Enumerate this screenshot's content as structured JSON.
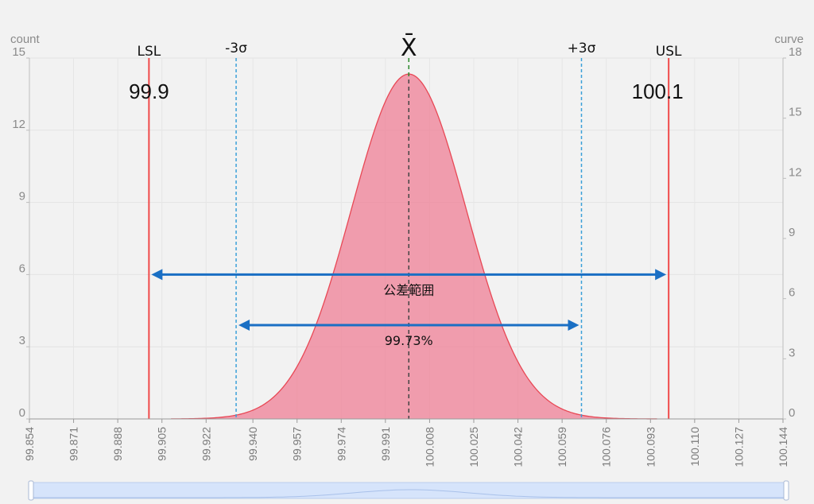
{
  "chart_data": {
    "type": "area",
    "y_left": {
      "title": "count",
      "ticks": [
        0,
        3,
        6,
        9,
        12,
        15
      ],
      "range": [
        0,
        15
      ]
    },
    "y_right": {
      "title": "curve",
      "ticks": [
        0,
        3,
        6,
        9,
        12,
        15,
        18
      ],
      "range": [
        0,
        18
      ]
    },
    "x": {
      "ticks": [
        "99.854",
        "99.871",
        "99.888",
        "99.905",
        "99.922",
        "99.940",
        "99.957",
        "99.974",
        "99.991",
        "100.008",
        "100.025",
        "100.042",
        "100.059",
        "100.076",
        "100.093",
        "100.110",
        "100.127",
        "100.144"
      ],
      "range": [
        99.854,
        100.144
      ]
    },
    "curve": {
      "mean": 100.0,
      "sigma": 0.02215,
      "peak": 17.2,
      "x_start": 99.9085,
      "x_end": 100.0955,
      "color": "#ef7f95",
      "line_color": "#e84855"
    },
    "markers": {
      "lsl": {
        "label": "LSL",
        "x": 99.9,
        "value_label": "99.9",
        "color": "#f04a4a"
      },
      "usl": {
        "label": "USL",
        "x": 100.1,
        "value_label": "100.1",
        "color": "#f04a4a"
      },
      "minus3": {
        "label": "-3σ",
        "x": 99.93355,
        "color": "#3aa0d8"
      },
      "plus3": {
        "label": "+3σ",
        "x": 100.06645,
        "color": "#3aa0d8"
      },
      "xbar": {
        "label": "X̄",
        "x": 100.0,
        "color": "#444444"
      }
    },
    "ranges": {
      "tolerance": {
        "label": "公差範囲",
        "from": 99.9,
        "to": 100.1,
        "y_left": 6,
        "color": "#1a6fc4"
      },
      "sigma": {
        "label": "99.73%",
        "from": 99.93355,
        "to": 100.06645,
        "y_left": 3.9,
        "color": "#1a6fc4"
      }
    }
  },
  "slider": {
    "fill": "#d6e4fb",
    "border": "#b9cdec"
  }
}
